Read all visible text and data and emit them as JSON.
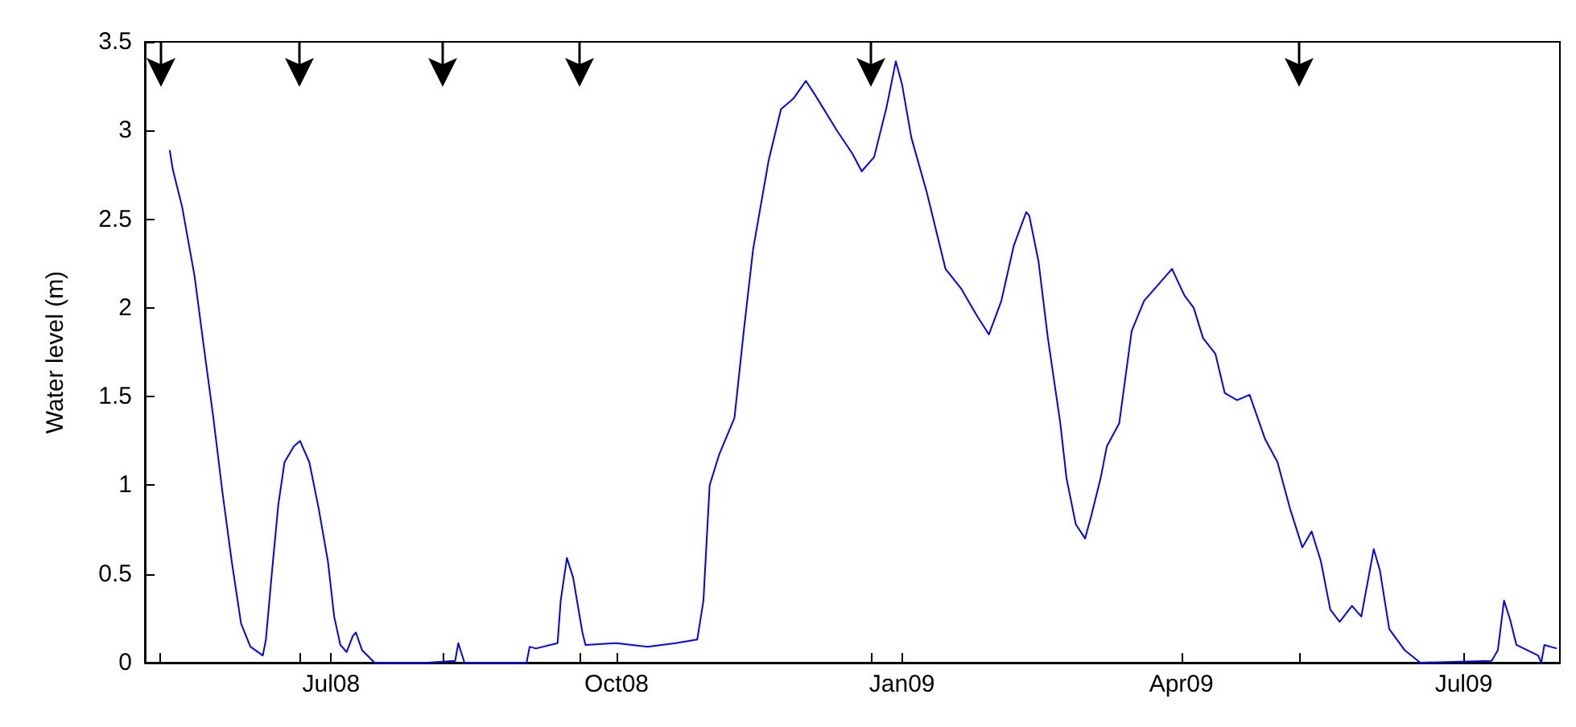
{
  "chart_data": {
    "type": "line",
    "ylabel": "Water level (m)",
    "x": [
      "2008-05-10",
      "2008-05-11",
      "2008-05-14",
      "2008-05-18",
      "2008-05-21",
      "2008-05-24",
      "2008-05-27",
      "2008-05-30",
      "2008-06-02",
      "2008-06-05",
      "2008-06-09",
      "2008-06-10",
      "2008-06-12",
      "2008-06-14",
      "2008-06-16",
      "2008-06-19",
      "2008-06-21",
      "2008-06-24",
      "2008-06-27",
      "2008-06-30",
      "2008-07-02",
      "2008-07-04",
      "2008-07-06",
      "2008-07-08",
      "2008-07-09",
      "2008-07-11",
      "2008-07-15",
      "2008-08-01",
      "2008-08-10",
      "2008-08-11",
      "2008-08-13",
      "2008-09-02",
      "2008-09-03",
      "2008-09-05",
      "2008-09-12",
      "2008-09-13",
      "2008-09-15",
      "2008-09-17",
      "2008-09-20",
      "2008-09-21",
      "2008-10-01",
      "2008-10-11",
      "2008-10-20",
      "2008-10-27",
      "2008-10-29",
      "2008-10-31",
      "2008-11-03",
      "2008-11-08",
      "2008-11-11",
      "2008-11-14",
      "2008-11-19",
      "2008-11-23",
      "2008-11-27",
      "2008-12-01",
      "2008-12-04",
      "2008-12-11",
      "2008-12-16",
      "2008-12-19",
      "2008-12-23",
      "2008-12-27",
      "2008-12-30",
      "2009-01-01",
      "2009-01-04",
      "2009-01-09",
      "2009-01-15",
      "2009-01-20",
      "2009-01-25",
      "2009-01-29",
      "2009-02-02",
      "2009-02-06",
      "2009-02-10",
      "2009-02-11",
      "2009-02-14",
      "2009-02-17",
      "2009-02-21",
      "2009-02-23",
      "2009-02-26",
      "2009-03-01",
      "2009-03-03",
      "2009-03-06",
      "2009-03-08",
      "2009-03-12",
      "2009-03-16",
      "2009-03-20",
      "2009-03-26",
      "2009-03-29",
      "2009-04-02",
      "2009-04-05",
      "2009-04-08",
      "2009-04-12",
      "2009-04-15",
      "2009-04-19",
      "2009-04-23",
      "2009-04-28",
      "2009-05-02",
      "2009-05-06",
      "2009-05-10",
      "2009-05-13",
      "2009-05-16",
      "2009-05-19",
      "2009-05-22",
      "2009-05-26",
      "2009-05-29",
      "2009-06-02",
      "2009-06-04",
      "2009-06-07",
      "2009-06-12",
      "2009-06-17",
      "2009-07-10",
      "2009-07-12",
      "2009-07-14",
      "2009-07-16",
      "2009-07-18",
      "2009-07-25",
      "2009-07-26",
      "2009-07-27",
      "2009-07-31"
    ],
    "series": [
      {
        "color": "#0000ff",
        "values": [
          2.89,
          2.78,
          2.57,
          2.18,
          1.78,
          1.39,
          0.96,
          0.57,
          0.22,
          0.09,
          0.04,
          0.13,
          0.52,
          0.89,
          1.13,
          1.22,
          1.25,
          1.13,
          0.87,
          0.57,
          0.26,
          0.1,
          0.06,
          0.15,
          0.17,
          0.07,
          0,
          0,
          0.01,
          0.11,
          0,
          0,
          0.09,
          0.08,
          0.11,
          0.35,
          0.59,
          0.48,
          0.17,
          0.1,
          0.11,
          0.09,
          0.11,
          0.13,
          0.35,
          1.0,
          1.17,
          1.38,
          1.87,
          2.33,
          2.83,
          3.12,
          3.18,
          3.28,
          3.2,
          3.0,
          2.87,
          2.77,
          2.85,
          3.13,
          3.39,
          3.26,
          2.96,
          2.65,
          2.22,
          2.11,
          1.96,
          1.85,
          2.04,
          2.35,
          2.54,
          2.52,
          2.26,
          1.83,
          1.35,
          1.04,
          0.78,
          0.7,
          0.83,
          1.04,
          1.22,
          1.35,
          1.87,
          2.04,
          2.16,
          2.22,
          2.07,
          2.0,
          1.83,
          1.74,
          1.52,
          1.48,
          1.51,
          1.26,
          1.13,
          0.87,
          0.65,
          0.74,
          0.57,
          0.3,
          0.23,
          0.32,
          0.26,
          0.64,
          0.52,
          0.19,
          0.07,
          0,
          0.01,
          0.07,
          0.35,
          0.24,
          0.1,
          0.04,
          0,
          0.1,
          0.08
        ]
      }
    ],
    "xlim": [
      "2008-05-02",
      "2009-08-01"
    ],
    "xticks": [
      {
        "value": "2008-05-07",
        "label": null
      },
      {
        "value": "2008-06-21",
        "label": null
      },
      {
        "value": "2008-07-01",
        "label": "Jul08"
      },
      {
        "value": "2008-08-06",
        "label": null
      },
      {
        "value": "2008-09-19",
        "label": null
      },
      {
        "value": "2008-10-01",
        "label": "Oct08"
      },
      {
        "value": "2008-12-22",
        "label": null
      },
      {
        "value": "2009-01-01",
        "label": "Jan09"
      },
      {
        "value": "2009-04-01",
        "label": "Apr09"
      },
      {
        "value": "2009-05-09",
        "label": null
      },
      {
        "value": "2009-07-01",
        "label": "Jul09"
      }
    ],
    "ylim": [
      0,
      3.5
    ],
    "yticks": [
      0,
      0.5,
      1,
      1.5,
      2,
      2.5,
      3,
      3.5
    ],
    "grid": false
  }
}
